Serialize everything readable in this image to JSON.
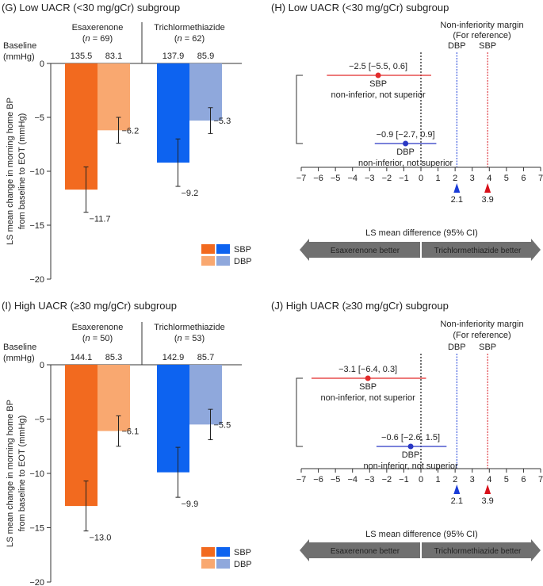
{
  "colors": {
    "esa_sbp": "#f26a1f",
    "esa_dbp": "#f9a870",
    "tri_sbp": "#0d63f0",
    "tri_dbp": "#8fa8dc",
    "forest_sbp": "#e22b2b",
    "forest_dbp": "#2a38c4",
    "arrow": "#707070",
    "dbp_margin": "#1a3cd8",
    "sbp_margin": "#d8101a"
  },
  "chart_data": [
    {
      "type": "bar",
      "panel": "G",
      "title": "(G) Low UACR (<30 mg/gCr) subgroup",
      "ylabel_line1": "LS mean change in morning home BP",
      "ylabel_line2": "from baseline to EOT (mmHg)",
      "ylim": [
        -20,
        0
      ],
      "yticks": [
        "0",
        "-5",
        "-10",
        "-15",
        "-20"
      ],
      "baseline_label_1": "Baseline",
      "baseline_label_2": "(mmHg)",
      "groups": [
        {
          "name": "Esaxerenone",
          "n_label": "(n = 69)",
          "baseline": [
            "135.5",
            "83.1"
          ],
          "sbp": -11.7,
          "dbp": -6.2,
          "sbp_err": 2.1,
          "dbp_err": 1.2,
          "sbp_label": "−11.7",
          "dbp_label": "−6.2"
        },
        {
          "name": "Trichlormethiazide",
          "n_label": "(n = 62)",
          "baseline": [
            "137.9",
            "85.9"
          ],
          "sbp": -9.2,
          "dbp": -5.3,
          "sbp_err": 2.2,
          "dbp_err": 1.2,
          "sbp_label": "−9.2",
          "dbp_label": "−5.3"
        }
      ],
      "legend": [
        "SBP",
        "DBP"
      ]
    },
    {
      "type": "forest",
      "panel": "H",
      "title": "(H) Low UACR (<30 mg/gCr) subgroup",
      "margin_title_1": "Non-inferiority margin",
      "margin_title_2": "(For reference)",
      "margin_dbp_label": "DBP",
      "margin_sbp_label": "SBP",
      "margin_dbp": 2.1,
      "margin_sbp": 3.9,
      "margin_dbp_text": "2.1",
      "margin_sbp_text": "3.9",
      "xlim": [
        -7,
        7
      ],
      "xticks": [
        "−7",
        "−6",
        "−5",
        "−4",
        "−3",
        "−2",
        "−1",
        "0",
        "1",
        "2",
        "3",
        "4",
        "5",
        "6",
        "7"
      ],
      "xlabel": "LS mean difference (95% CI)",
      "rows": [
        {
          "name": "SBP",
          "est": -2.5,
          "lo": -5.5,
          "hi": 0.6,
          "ci_text": "−2.5 [−5.5, 0.6]",
          "note": "non-inferior, not superior"
        },
        {
          "name": "DBP",
          "est": -0.9,
          "lo": -2.7,
          "hi": 0.9,
          "ci_text": "−0.9 [−2.7, 0.9]",
          "note": "non-inferior, not superior"
        }
      ],
      "left_arrow": "Esaxerenone better",
      "right_arrow": "Trichlormethiazide better"
    },
    {
      "type": "bar",
      "panel": "I",
      "title": "(I) High UACR (≥30 mg/gCr) subgroup",
      "ylabel_line1": "LS mean change in morning home BP",
      "ylabel_line2": "from baseline to EOT (mmHg)",
      "ylim": [
        -20,
        0
      ],
      "yticks": [
        "0",
        "-5",
        "-10",
        "-15",
        "-20"
      ],
      "baseline_label_1": "Baseline",
      "baseline_label_2": "(mmHg)",
      "groups": [
        {
          "name": "Esaxerenone",
          "n_label": "(n = 50)",
          "baseline": [
            "144.1",
            "85.3"
          ],
          "sbp": -13.0,
          "dbp": -6.1,
          "sbp_err": 2.3,
          "dbp_err": 1.4,
          "sbp_label": "−13.0",
          "dbp_label": "−6.1"
        },
        {
          "name": "Trichlormethiazide",
          "n_label": "(n = 53)",
          "baseline": [
            "142.9",
            "85.7"
          ],
          "sbp": -9.9,
          "dbp": -5.5,
          "sbp_err": 2.3,
          "dbp_err": 1.4,
          "sbp_label": "−9.9",
          "dbp_label": "−5.5"
        }
      ],
      "legend": [
        "SBP",
        "DBP"
      ]
    },
    {
      "type": "forest",
      "panel": "J",
      "title": "(J) High UACR (≥30 mg/gCr) subgroup",
      "margin_title_1": "Non-inferiority margin",
      "margin_title_2": "(For reference)",
      "margin_dbp_label": "DBP",
      "margin_sbp_label": "SBP",
      "margin_dbp": 2.1,
      "margin_sbp": 3.9,
      "margin_dbp_text": "2.1",
      "margin_sbp_text": "3.9",
      "xlim": [
        -7,
        7
      ],
      "xticks": [
        "−7",
        "−6",
        "−5",
        "−4",
        "−3",
        "−2",
        "−1",
        "0",
        "1",
        "2",
        "3",
        "4",
        "5",
        "6",
        "7"
      ],
      "xlabel": "LS mean difference (95% CI)",
      "rows": [
        {
          "name": "SBP",
          "est": -3.1,
          "lo": -6.4,
          "hi": 0.3,
          "ci_text": "−3.1 [−6.4, 0.3]",
          "note": "non-inferior, not superior"
        },
        {
          "name": "DBP",
          "est": -0.6,
          "lo": -2.6,
          "hi": 1.5,
          "ci_text": "−0.6 [−2.6, 1.5]",
          "note": "non-inferior, not superior"
        }
      ],
      "left_arrow": "Esaxerenone better",
      "right_arrow": "Trichlormethiazide better"
    }
  ]
}
